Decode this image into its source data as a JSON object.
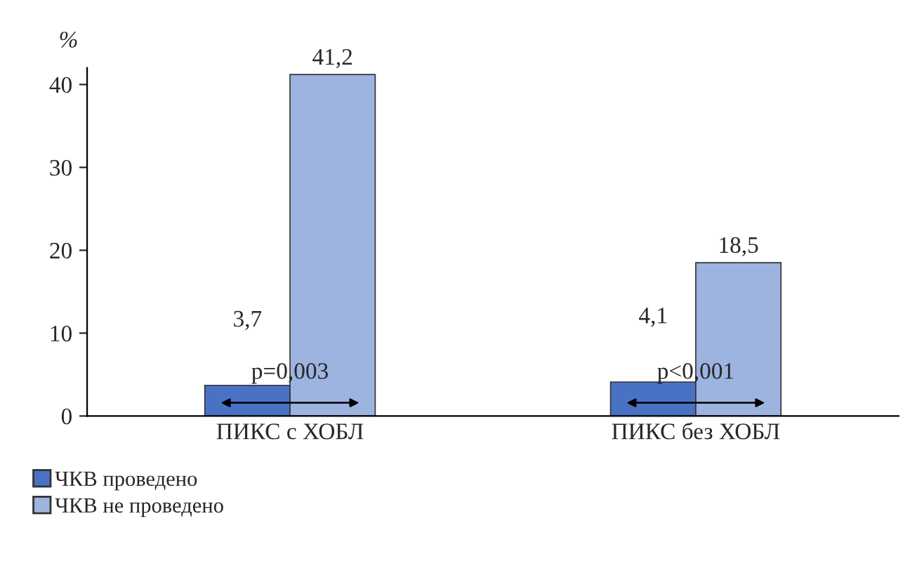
{
  "chart_data": {
    "type": "bar",
    "ylabel": "%",
    "categories": [
      "ПИКС с ХОБЛ",
      "ПИКС без ХОБЛ"
    ],
    "series": [
      {
        "name": "ЧКВ проведено",
        "color": "#4a72c4",
        "values": [
          3.7,
          4.1
        ],
        "value_labels": [
          "3,7",
          "4,1"
        ]
      },
      {
        "name": "ЧКВ не проведено",
        "color": "#9db3e0",
        "values": [
          41.2,
          18.5
        ],
        "value_labels": [
          "41,2",
          "18,5"
        ]
      }
    ],
    "ylim": [
      0,
      42
    ],
    "yticks": [
      0,
      10,
      20,
      30,
      40
    ],
    "grid": false,
    "legend": "bottom left",
    "annotations": [
      "p=0,003",
      "p<0,001"
    ]
  }
}
